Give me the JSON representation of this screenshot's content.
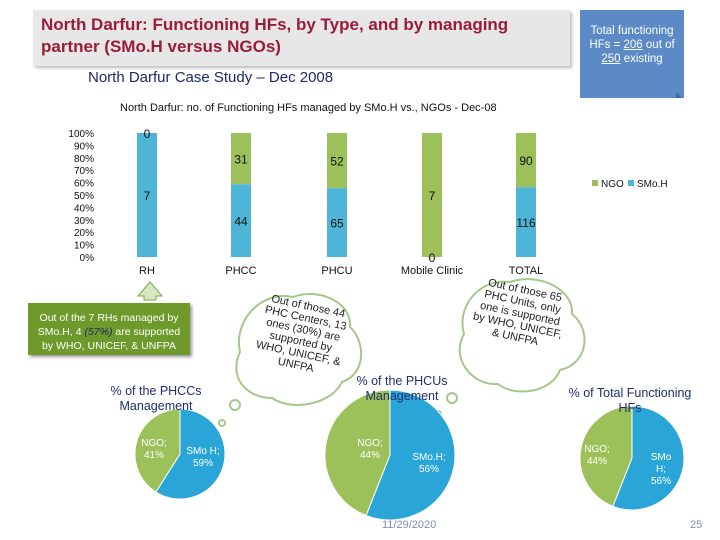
{
  "title": "North Darfur: Functioning HFs, by Type, and by managing partner (SMo.H versus NGOs)",
  "subtitle": "North Darfur Case Study – Dec 2008",
  "callout": {
    "line1": "Total functioning HFs = ",
    "total": "206",
    "line2": " out of ",
    "of": "250",
    "line3": " existing"
  },
  "bar_chart_title": "North Darfur: no. of Functioning HFs managed by  SMo.H vs., NGOs - Dec-08",
  "y_ticks": [
    "100%",
    "90%",
    "80%",
    "70%",
    "60%",
    "50%",
    "40%",
    "30%",
    "20%",
    "10%",
    "0%"
  ],
  "colors": {
    "ngo": "#9dc15a",
    "smoh": "#4fb5d6",
    "pie_ngo": "#9dc15a",
    "pie_smoh": "#2aa5d8",
    "callout": "#5b8ac6",
    "note": "#6d9a2b",
    "title_text": "#9b1c3a"
  },
  "rh_note": {
    "prefix": "Out of the 7 RHs managed by SMo.H, 4 ",
    "pct": "(57%)",
    "suffix": " are supported by WHO, UNICEF, & UNFPA"
  },
  "phcc_bubble": "Out of those 44 PHC Centers, 13 ones (30%) are supported by WHO, UNICEF, & UNFPA",
  "phcu_bubble": "Out of those 65 PHC Units, only one is supported by WHO, UNICEF, & UNFPA",
  "pies": [
    {
      "title": "% of the PHCCs Management",
      "ngo_label": "NGO; 41%",
      "smoh_label": "SMo H; 59%"
    },
    {
      "title": "% of the PHCUs Management",
      "ngo_label": "NGO; 44%",
      "smoh_label": "SMo.H; 56%"
    },
    {
      "title": "% of Total Functioning HFs",
      "ngo_label": "NGO; 44%",
      "smoh_label": "SMo H; 56%"
    }
  ],
  "footer": {
    "date": "11/29/2020",
    "page": "25"
  },
  "chart_data": [
    {
      "type": "bar",
      "stacked": "100%",
      "title": "North Darfur: no. of Functioning HFs managed by  SMo.H vs., NGOs - Dec-08",
      "categories": [
        "RH",
        "PHCC",
        "PHCU",
        "Mobile Clinic",
        "TOTAL"
      ],
      "series": [
        {
          "name": "NGO",
          "values": [
            0,
            31,
            52,
            7,
            90
          ]
        },
        {
          "name": "SMo.H",
          "values": [
            7,
            44,
            65,
            0,
            116
          ]
        }
      ],
      "ylim": [
        0,
        100
      ],
      "legend": "right",
      "grid": false
    },
    {
      "type": "pie",
      "title": "% of the PHCCs Management",
      "labels": [
        "NGO",
        "SMo H"
      ],
      "values": [
        41,
        59
      ]
    },
    {
      "type": "pie",
      "title": "% of the PHCUs Management",
      "labels": [
        "NGO",
        "SMo.H"
      ],
      "values": [
        44,
        56
      ]
    },
    {
      "type": "pie",
      "title": "% of Total Functioning HFs",
      "labels": [
        "NGO",
        "SMo H"
      ],
      "values": [
        44,
        56
      ]
    }
  ]
}
